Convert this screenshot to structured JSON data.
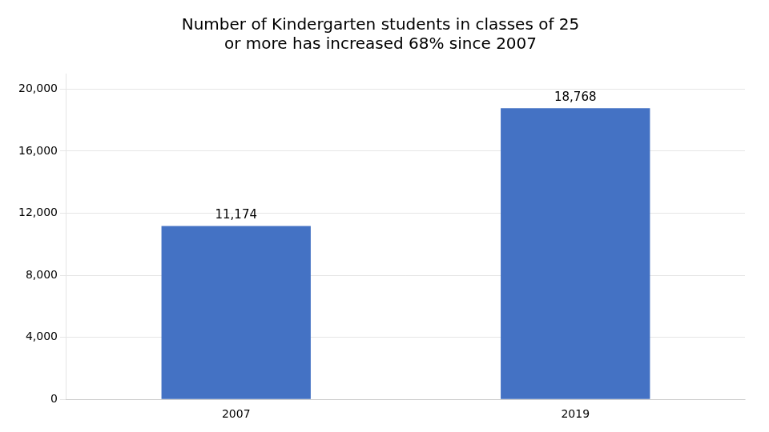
{
  "chart_data": {
    "type": "bar",
    "title": "Number of Kindergarten students in classes of 25\nor more has increased 68% since 2007",
    "categories": [
      "2007",
      "2019"
    ],
    "values": [
      11174,
      18768
    ],
    "value_labels": [
      "11,174",
      "18,768"
    ],
    "color": "#4472C4",
    "ylim": [
      0,
      21000
    ],
    "yticks": [
      0,
      {
        "value": 4000,
        "label": "4,000"
      },
      {
        "value": 8000,
        "label": "8,000"
      },
      {
        "value": 12000,
        "label": "12,000"
      },
      {
        "value": 16000,
        "label": "16,000"
      },
      {
        "value": 20000,
        "label": "20,000"
      }
    ],
    "grid": true,
    "data_labels": true
  }
}
